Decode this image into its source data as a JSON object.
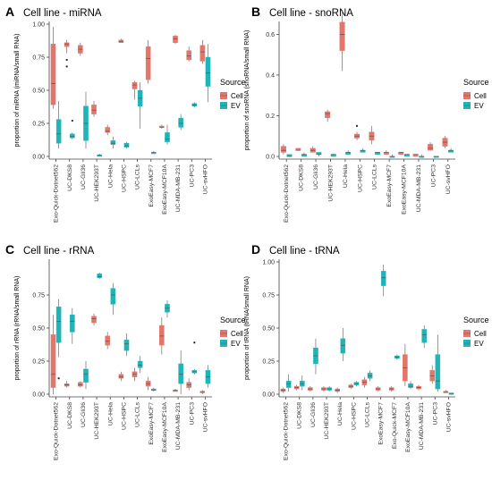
{
  "colors": {
    "cell": "#e2766b",
    "ev": "#1fb5b8",
    "whisker": "#333333",
    "axis": "#444444"
  },
  "chart_data": [
    {
      "panel_letter": "A",
      "title": "Cell line - miRNA",
      "type": "box",
      "ylabel": "proportion of miRNA (miRNA/small RNA)",
      "ylim": [
        0,
        1.0
      ],
      "yticks": [
        0.0,
        0.25,
        0.5,
        0.75,
        1.0
      ],
      "tick_labels": [
        "0.00",
        "0.25",
        "0.50",
        "0.75",
        "1.00"
      ],
      "legend": {
        "title": "Source",
        "entries": [
          "Cell",
          "EV"
        ],
        "position": "right"
      },
      "categories": [
        "Exo-Quick-Dotnet562",
        "UC-DKS8",
        "UC-Gli36",
        "UC-HEK293T",
        "UC-Hela",
        "UC-HSPC",
        "UC-LCLs",
        "ExoEasy-MCF7",
        "ExoEasy-MCF10A",
        "UC-MDA-MB-231",
        "UC-PC3",
        "UC-svHFO"
      ],
      "series": [
        {
          "name": "Cell",
          "boxes": [
            [
              0.36,
              0.39,
              0.55,
              0.85,
              0.98
            ],
            [
              0.78,
              0.83,
              0.85,
              0.86,
              0.88
            ],
            [
              0.76,
              0.78,
              0.81,
              0.84,
              0.86
            ],
            [
              0.3,
              0.32,
              0.35,
              0.39,
              0.42
            ],
            [
              0.16,
              0.18,
              0.19,
              0.22,
              0.24
            ],
            [
              0.86,
              0.86,
              0.87,
              0.88,
              0.89
            ],
            [
              0.43,
              0.51,
              0.54,
              0.56,
              0.57
            ],
            [
              0.55,
              0.58,
              0.74,
              0.83,
              0.88
            ],
            [
              0.21,
              0.22,
              0.22,
              0.23,
              0.24
            ],
            [
              0.85,
              0.86,
              0.89,
              0.91,
              0.92
            ],
            [
              0.72,
              0.73,
              0.76,
              0.8,
              0.83
            ],
            [
              0.7,
              0.72,
              0.79,
              0.84,
              0.88
            ]
          ],
          "outliers": [
            [],
            [
              0.68,
              0.73
            ],
            [],
            [],
            [],
            [],
            [],
            [],
            [],
            [],
            [],
            []
          ]
        },
        {
          "name": "EV",
          "boxes": [
            [
              0.06,
              0.1,
              0.17,
              0.28,
              0.42
            ],
            [
              0.13,
              0.14,
              0.15,
              0.17,
              0.18
            ],
            [
              0.06,
              0.12,
              0.25,
              0.38,
              0.49
            ],
            [
              0.0,
              0.0,
              0.01,
              0.01,
              0.02
            ],
            [
              0.06,
              0.09,
              0.1,
              0.12,
              0.15
            ],
            [
              0.06,
              0.07,
              0.08,
              0.1,
              0.11
            ],
            [
              0.21,
              0.38,
              0.44,
              0.5,
              0.56
            ],
            [
              0.02,
              0.02,
              0.03,
              0.03,
              0.04
            ],
            [
              0.09,
              0.11,
              0.13,
              0.18,
              0.24
            ],
            [
              0.2,
              0.22,
              0.25,
              0.29,
              0.32
            ],
            [
              0.37,
              0.38,
              0.39,
              0.4,
              0.41
            ],
            [
              0.41,
              0.53,
              0.63,
              0.75,
              0.85
            ]
          ],
          "outliers": [
            [],
            [
              0.27
            ],
            [],
            [],
            [],
            [],
            [],
            [],
            [],
            [],
            [],
            []
          ]
        }
      ]
    },
    {
      "panel_letter": "B",
      "title": "Cell line - snoRNA",
      "type": "box",
      "ylabel": "proportion of snoRNA (snoRNA/small RNA)",
      "ylim": [
        0,
        0.65
      ],
      "yticks": [
        0.0,
        0.2,
        0.4,
        0.6
      ],
      "tick_labels": [
        "0.0",
        "0.2",
        "0.4",
        "0.6"
      ],
      "legend": {
        "title": "Source",
        "entries": [
          "Cell",
          "EV"
        ],
        "position": "right"
      },
      "categories": [
        "Exo-Quick-Dotnet562",
        "UC-DKS8",
        "UC-Gli36",
        "UC-HEK293T",
        "UC-Hela",
        "UC-HSPC",
        "UC-LCLs",
        "ExoEasy-MCF7",
        "ExoEasy-MCF10A",
        "UC-MDA-MB-231",
        "UC-PC3",
        "UC-svHFO"
      ],
      "series": [
        {
          "name": "Cell",
          "boxes": [
            [
              0.01,
              0.02,
              0.03,
              0.05,
              0.06
            ],
            [
              0.03,
              0.03,
              0.03,
              0.04,
              0.04
            ],
            [
              0.02,
              0.02,
              0.03,
              0.04,
              0.05
            ],
            [
              0.17,
              0.19,
              0.21,
              0.22,
              0.23
            ],
            [
              0.42,
              0.52,
              0.6,
              0.66,
              0.72
            ],
            [
              0.08,
              0.09,
              0.1,
              0.11,
              0.12
            ],
            [
              0.06,
              0.08,
              0.1,
              0.12,
              0.15
            ],
            [
              0.01,
              0.01,
              0.02,
              0.02,
              0.03
            ],
            [
              0.01,
              0.01,
              0.02,
              0.02,
              0.02
            ],
            [
              0.0,
              0.0,
              0.01,
              0.01,
              0.01
            ],
            [
              0.03,
              0.03,
              0.04,
              0.06,
              0.07
            ],
            [
              0.04,
              0.05,
              0.07,
              0.09,
              0.1
            ]
          ],
          "outliers": [
            [],
            [],
            [],
            [],
            [],
            [
              0.15
            ],
            [],
            [],
            [],
            [],
            [],
            []
          ]
        },
        {
          "name": "EV",
          "boxes": [
            [
              0.0,
              0.0,
              0.0,
              0.01,
              0.01
            ],
            [
              0.0,
              0.0,
              0.01,
              0.01,
              0.02
            ],
            [
              0.0,
              0.01,
              0.01,
              0.02,
              0.02
            ],
            [
              0.0,
              0.0,
              0.01,
              0.01,
              0.01
            ],
            [
              0.01,
              0.01,
              0.02,
              0.02,
              0.03
            ],
            [
              0.02,
              0.02,
              0.03,
              0.03,
              0.04
            ],
            [
              0.01,
              0.01,
              0.02,
              0.02,
              0.02
            ],
            [
              0.0,
              0.0,
              0.0,
              0.0,
              0.01
            ],
            [
              0.0,
              0.0,
              0.01,
              0.01,
              0.01
            ],
            [
              0.0,
              0.0,
              0.0,
              0.0,
              0.01
            ],
            [
              0.0,
              0.0,
              0.0,
              0.0,
              0.0
            ],
            [
              0.02,
              0.02,
              0.03,
              0.03,
              0.04
            ]
          ],
          "outliers": [
            [],
            [],
            [],
            [],
            [],
            [],
            [],
            [],
            [],
            [],
            [],
            []
          ]
        }
      ]
    },
    {
      "panel_letter": "C",
      "title": "Cell line - rRNA",
      "type": "box",
      "ylabel": "proportion of rRNA (rRNA/small RNA)",
      "ylim": [
        0,
        1.0
      ],
      "yticks": [
        0.0,
        0.25,
        0.5,
        0.75
      ],
      "tick_labels": [
        "0.00",
        "0.25",
        "0.50",
        "0.75"
      ],
      "legend": {
        "title": "Source",
        "entries": [
          "Cell",
          "EV"
        ],
        "position": "right"
      },
      "categories": [
        "Exo-Quick-Dotnet562",
        "UC-DKS8",
        "UC-Gli36",
        "UC-HEK293T",
        "UC-Hela",
        "UC-HSPC",
        "UC-LCLs",
        "ExoEasy-MCF7",
        "ExoEasy-MCF10A",
        "UC-MDA-MB-231",
        "UC-PC3",
        "UC-svHFO"
      ],
      "series": [
        {
          "name": "Cell",
          "boxes": [
            [
              0.0,
              0.05,
              0.15,
              0.45,
              0.6
            ],
            [
              0.05,
              0.06,
              0.07,
              0.08,
              0.1
            ],
            [
              0.05,
              0.06,
              0.07,
              0.09,
              0.1
            ],
            [
              0.52,
              0.54,
              0.57,
              0.59,
              0.61
            ],
            [
              0.34,
              0.37,
              0.4,
              0.44,
              0.47
            ],
            [
              0.1,
              0.12,
              0.13,
              0.15,
              0.17
            ],
            [
              0.1,
              0.13,
              0.15,
              0.17,
              0.2
            ],
            [
              0.03,
              0.06,
              0.08,
              0.1,
              0.13
            ],
            [
              0.3,
              0.37,
              0.44,
              0.52,
              0.58
            ],
            [
              0.02,
              0.02,
              0.03,
              0.03,
              0.04
            ],
            [
              0.03,
              0.05,
              0.07,
              0.09,
              0.12
            ],
            [
              0.0,
              0.01,
              0.02,
              0.02,
              0.03
            ]
          ],
          "outliers": [
            [],
            [],
            [],
            [],
            [],
            [],
            [],
            [],
            [],
            [],
            [],
            []
          ]
        },
        {
          "name": "EV",
          "boxes": [
            [
              0.28,
              0.39,
              0.55,
              0.66,
              0.72
            ],
            [
              0.38,
              0.47,
              0.55,
              0.6,
              0.65
            ],
            [
              0.04,
              0.09,
              0.15,
              0.19,
              0.25
            ],
            [
              0.87,
              0.88,
              0.89,
              0.91,
              0.92
            ],
            [
              0.6,
              0.68,
              0.75,
              0.8,
              0.84
            ],
            [
              0.29,
              0.33,
              0.38,
              0.41,
              0.46
            ],
            [
              0.16,
              0.2,
              0.22,
              0.25,
              0.29
            ],
            [
              0.02,
              0.03,
              0.03,
              0.04,
              0.05
            ],
            [
              0.58,
              0.62,
              0.65,
              0.68,
              0.71
            ],
            [
              0.0,
              0.08,
              0.15,
              0.23,
              0.33
            ],
            [
              0.15,
              0.16,
              0.17,
              0.18,
              0.19
            ],
            [
              0.05,
              0.08,
              0.13,
              0.18,
              0.22
            ]
          ],
          "outliers": [
            [
              0.12
            ],
            [],
            [],
            [],
            [],
            [],
            [],
            [],
            [],
            [],
            [
              0.39
            ],
            []
          ]
        }
      ]
    },
    {
      "panel_letter": "D",
      "title": "Cell line - tRNA",
      "type": "box",
      "ylabel": "proportion of tRNA (tRNA/small RNA)",
      "ylim": [
        0,
        1.0
      ],
      "yticks": [
        0.0,
        0.25,
        0.5,
        0.75,
        1.0
      ],
      "tick_labels": [
        "0.00",
        "0.25",
        "0.50",
        "0.75",
        "1.00"
      ],
      "legend": {
        "title": "Source",
        "entries": [
          "Cell",
          "EV"
        ],
        "position": "right"
      },
      "categories": [
        "Exo-Quick-Dotnet562",
        "UC-DKS8",
        "UC-Gli36",
        "UC-HEK293T",
        "UC-Hela",
        "UC-HSPC",
        "UC-LCLs",
        "ExoEasy-MCF7",
        "Exo-Quick-MCF7",
        "ExoEasy-MCF10A",
        "UC-MDA-MB-231",
        "UC-PC3",
        "UC-svHFO"
      ],
      "series": [
        {
          "name": "Cell",
          "boxes": [
            [
              0.01,
              0.02,
              0.03,
              0.04,
              0.05
            ],
            [
              0.03,
              0.04,
              0.05,
              0.06,
              0.07
            ],
            [
              0.02,
              0.03,
              0.04,
              0.05,
              0.06
            ],
            [
              0.02,
              0.03,
              0.04,
              0.05,
              0.06
            ],
            [
              0.01,
              0.02,
              0.03,
              0.04,
              0.05
            ],
            [
              0.04,
              0.05,
              0.06,
              0.07,
              0.08
            ],
            [
              0.05,
              0.07,
              0.09,
              0.11,
              0.13
            ],
            [
              0.02,
              0.03,
              0.04,
              0.05,
              0.06
            ],
            [
              0.02,
              0.03,
              0.04,
              0.05,
              0.06
            ],
            [
              0.06,
              0.1,
              0.2,
              0.3,
              0.38
            ],
            [
              0.03,
              0.04,
              0.05,
              0.06,
              0.07
            ],
            [
              0.08,
              0.1,
              0.14,
              0.18,
              0.22
            ],
            [
              0.01,
              0.01,
              0.02,
              0.02,
              0.03
            ]
          ],
          "outliers": [
            [],
            [],
            [],
            [],
            [],
            [],
            [],
            [],
            [],
            [],
            [],
            [],
            []
          ]
        },
        {
          "name": "EV",
          "boxes": [
            [
              0.02,
              0.05,
              0.08,
              0.1,
              0.15
            ],
            [
              0.03,
              0.06,
              0.08,
              0.1,
              0.14
            ],
            [
              0.15,
              0.23,
              0.29,
              0.35,
              0.42
            ],
            [
              0.02,
              0.03,
              0.04,
              0.05,
              0.06
            ],
            [
              0.25,
              0.31,
              0.37,
              0.42,
              0.5
            ],
            [
              0.06,
              0.07,
              0.08,
              0.09,
              0.1
            ],
            [
              0.1,
              0.12,
              0.14,
              0.16,
              0.18
            ],
            [
              0.74,
              0.82,
              0.88,
              0.93,
              0.98
            ],
            [
              0.26,
              0.27,
              0.28,
              0.29,
              0.3
            ],
            [
              0.04,
              0.05,
              0.06,
              0.08,
              0.1
            ],
            [
              0.35,
              0.39,
              0.45,
              0.49,
              0.52
            ],
            [
              0.02,
              0.04,
              0.1,
              0.3,
              0.45
            ],
            [
              0.0,
              0.0,
              0.0,
              0.01,
              0.01
            ]
          ],
          "outliers": [
            [],
            [],
            [],
            [],
            [],
            [],
            [],
            [],
            [],
            [],
            [],
            [],
            []
          ]
        }
      ]
    }
  ]
}
